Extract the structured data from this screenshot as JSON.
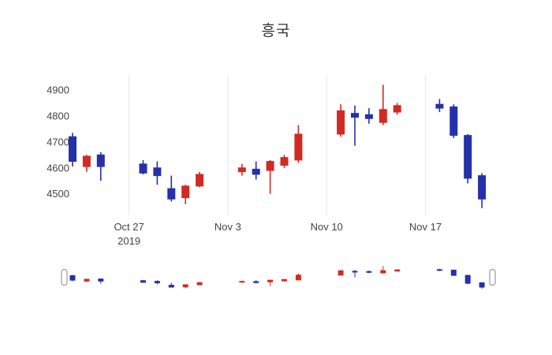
{
  "title": "흥국",
  "chart_data": {
    "type": "candlestick",
    "title": "흥국",
    "legend": "none",
    "grid": "vertical-weekly",
    "colors": {
      "increasing": "#d12a23",
      "decreasing": "#2531a8",
      "grid": "#e6e6e6",
      "tick_text": "#444444",
      "title_text": "#333333",
      "handle_fill": "#ffffff",
      "handle_border": "#999999"
    },
    "ylim": [
      4420,
      4958
    ],
    "y_ticks": [
      4500,
      4600,
      4700,
      4800,
      4900
    ],
    "x_ticks": [
      {
        "date": "2019-10-27",
        "label": "Oct 27",
        "sublabel": "2019"
      },
      {
        "date": "2019-11-03",
        "label": "Nov 3",
        "sublabel": ""
      },
      {
        "date": "2019-11-10",
        "label": "Nov 10",
        "sublabel": ""
      },
      {
        "date": "2019-11-17",
        "label": "Nov 17",
        "sublabel": ""
      }
    ],
    "rangeslider": {
      "visible": true,
      "selected_range": "full"
    },
    "series": {
      "dates": [
        "2019-10-23",
        "2019-10-24",
        "2019-10-25",
        "2019-10-28",
        "2019-10-29",
        "2019-10-30",
        "2019-10-31",
        "2019-11-01",
        "2019-11-04",
        "2019-11-05",
        "2019-11-06",
        "2019-11-07",
        "2019-11-08",
        "2019-11-11",
        "2019-11-12",
        "2019-11-13",
        "2019-11-14",
        "2019-11-15",
        "2019-11-18",
        "2019-11-19",
        "2019-11-20",
        "2019-11-21"
      ],
      "open": [
        4720,
        4605,
        4650,
        4615,
        4600,
        4520,
        4485,
        4530,
        4585,
        4595,
        4590,
        4610,
        4630,
        4730,
        4810,
        4805,
        4775,
        4815,
        4845,
        4835,
        4725,
        4570
      ],
      "high": [
        4735,
        4650,
        4660,
        4630,
        4625,
        4570,
        4535,
        4585,
        4615,
        4625,
        4630,
        4650,
        4765,
        4845,
        4840,
        4830,
        4920,
        4850,
        4865,
        4845,
        4730,
        4580
      ],
      "low": [
        4605,
        4585,
        4550,
        4575,
        4535,
        4470,
        4460,
        4525,
        4570,
        4555,
        4500,
        4600,
        4620,
        4720,
        4685,
        4770,
        4765,
        4805,
        4815,
        4715,
        4540,
        4445
      ],
      "close": [
        4625,
        4645,
        4605,
        4580,
        4570,
        4480,
        4530,
        4575,
        4600,
        4575,
        4625,
        4640,
        4730,
        4820,
        4795,
        4790,
        4825,
        4840,
        4830,
        4725,
        4560,
        4480
      ]
    }
  }
}
